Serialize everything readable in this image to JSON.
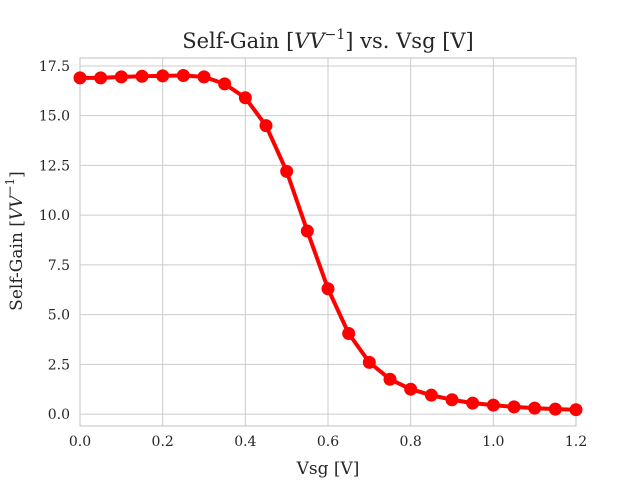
{
  "chart_data": {
    "type": "line",
    "title_prefix": "Self-Gain [",
    "title_math": "VV",
    "title_exp": "−1",
    "title_suffix": "] vs. Vsg [V]",
    "xlabel": "Vsg [V]",
    "ylabel_prefix": "Self-Gain [",
    "ylabel_math": "VV",
    "ylabel_exp": "−1",
    "ylabel_suffix": "]",
    "xlim": [
      0.0,
      1.2
    ],
    "ylim": [
      -0.6,
      17.9
    ],
    "xticks": [
      "0.0",
      "0.2",
      "0.4",
      "0.6",
      "0.8",
      "1.0",
      "1.2"
    ],
    "yticks": [
      "0.0",
      "2.5",
      "5.0",
      "7.5",
      "10.0",
      "12.5",
      "15.0",
      "17.5"
    ],
    "grid": true,
    "series": [
      {
        "color": "#ff0000",
        "x": [
          0.0,
          0.05,
          0.1,
          0.15,
          0.2,
          0.25,
          0.3,
          0.35,
          0.4,
          0.45,
          0.5,
          0.55,
          0.6,
          0.65,
          0.7,
          0.75,
          0.8,
          0.85,
          0.9,
          0.95,
          1.0,
          1.05,
          1.1,
          1.15,
          1.2
        ],
        "y": [
          16.9,
          16.9,
          16.95,
          16.98,
          17.0,
          17.02,
          16.95,
          16.6,
          15.9,
          14.5,
          12.2,
          9.2,
          6.3,
          4.05,
          2.6,
          1.75,
          1.25,
          0.95,
          0.72,
          0.55,
          0.45,
          0.36,
          0.3,
          0.25,
          0.22
        ]
      }
    ]
  }
}
